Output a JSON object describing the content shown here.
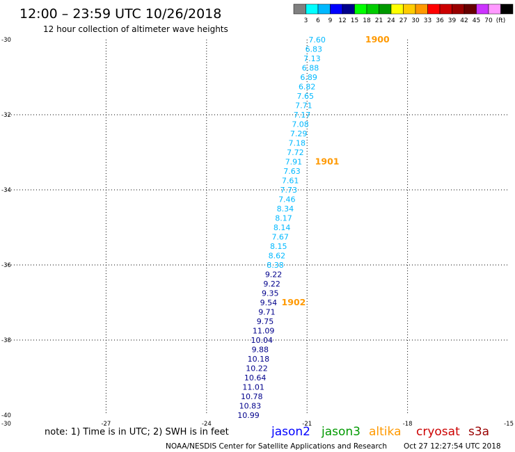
{
  "header": {
    "title": "12:00 – 23:59 UTC 10/26/2018",
    "subtitle": "12 hour collection of altimeter wave heights"
  },
  "colorbar": {
    "colors": [
      "#808080",
      "#00ffff",
      "#00b8ff",
      "#0000ff",
      "#00008b",
      "#00ff00",
      "#00cc00",
      "#009900",
      "#ffff00",
      "#ffcc00",
      "#ff9900",
      "#ff0000",
      "#cc0000",
      "#990000",
      "#660000",
      "#cc33ff",
      "#ff99ff",
      "#000000"
    ],
    "labels": [
      "3",
      "6",
      "9",
      "12",
      "15",
      "18",
      "21",
      "24",
      "27",
      "30",
      "33",
      "36",
      "39",
      "42",
      "45",
      "70",
      "(ft)"
    ]
  },
  "footer": {
    "note": "note: 1) Time is in UTC; 2) SWH is in feet",
    "credit": "NOAA/NESDIS Center for Satellite Applications and Research",
    "timestamp": "Oct 27 12:27:54 UTC 2018"
  },
  "legend": [
    {
      "name": "jason2",
      "color": "#0000ff"
    },
    {
      "name": "jason3",
      "color": "#009900"
    },
    {
      "name": "altika",
      "color": "#ff9900"
    },
    {
      "name": "cryosat",
      "color": "#cc0000"
    },
    {
      "name": "s3a",
      "color": "#990000"
    }
  ],
  "chart_data": {
    "type": "scatter",
    "xlim": [
      -30,
      -15
    ],
    "ylim": [
      -40,
      -30
    ],
    "xticks": [
      "-30",
      "-27",
      "-24",
      "-21",
      "-18",
      "-15"
    ],
    "yticks": [
      "-30",
      "-32",
      "-34",
      "-36",
      "-38",
      "-40"
    ],
    "grid": true,
    "series": [
      {
        "color": "#00b8ff",
        "points": [
          {
            "x": -20.7,
            "y": -30.0,
            "label": "7.60"
          },
          {
            "x": -20.8,
            "y": -30.25,
            "label": "6.83"
          },
          {
            "x": -20.85,
            "y": -30.5,
            "label": "7.13"
          },
          {
            "x": -20.9,
            "y": -30.75,
            "label": "6.88"
          },
          {
            "x": -20.95,
            "y": -31.0,
            "label": "6.89"
          },
          {
            "x": -21.0,
            "y": -31.25,
            "label": "6.82"
          },
          {
            "x": -21.05,
            "y": -31.5,
            "label": "7.65"
          },
          {
            "x": -21.1,
            "y": -31.75,
            "label": "7.71"
          },
          {
            "x": -21.15,
            "y": -32.0,
            "label": "7.17"
          },
          {
            "x": -21.2,
            "y": -32.25,
            "label": "7.08"
          },
          {
            "x": -21.25,
            "y": -32.5,
            "label": "7.29"
          },
          {
            "x": -21.3,
            "y": -32.75,
            "label": "7.18"
          },
          {
            "x": -21.35,
            "y": -33.0,
            "label": "7.72"
          },
          {
            "x": -21.4,
            "y": -33.25,
            "label": "7.91"
          },
          {
            "x": -21.45,
            "y": -33.5,
            "label": "7.63"
          },
          {
            "x": -21.5,
            "y": -33.75,
            "label": "7.61"
          },
          {
            "x": -21.55,
            "y": -34.0,
            "label": "7.73"
          },
          {
            "x": -21.6,
            "y": -34.25,
            "label": "7.46"
          },
          {
            "x": -21.65,
            "y": -34.5,
            "label": "8.34"
          },
          {
            "x": -21.7,
            "y": -34.75,
            "label": "8.17"
          },
          {
            "x": -21.75,
            "y": -35.0,
            "label": "8.14"
          },
          {
            "x": -21.8,
            "y": -35.25,
            "label": "7.67"
          },
          {
            "x": -21.85,
            "y": -35.5,
            "label": "8.15"
          },
          {
            "x": -21.9,
            "y": -35.75,
            "label": "8.62"
          },
          {
            "x": -21.95,
            "y": -36.0,
            "label": "8.38"
          }
        ]
      },
      {
        "color": "#00008b",
        "points": [
          {
            "x": -22.0,
            "y": -36.25,
            "label": "9.22"
          },
          {
            "x": -22.05,
            "y": -36.5,
            "label": "9.22"
          },
          {
            "x": -22.1,
            "y": -36.75,
            "label": "9.35"
          },
          {
            "x": -22.15,
            "y": -37.0,
            "label": "9.54"
          },
          {
            "x": -22.2,
            "y": -37.25,
            "label": "9.71"
          },
          {
            "x": -22.25,
            "y": -37.5,
            "label": "9.75"
          },
          {
            "x": -22.3,
            "y": -37.75,
            "label": "11.09"
          },
          {
            "x": -22.35,
            "y": -38.0,
            "label": "10.04"
          },
          {
            "x": -22.4,
            "y": -38.25,
            "label": "9.88"
          },
          {
            "x": -22.45,
            "y": -38.5,
            "label": "10.18"
          },
          {
            "x": -22.5,
            "y": -38.75,
            "label": "10.22"
          },
          {
            "x": -22.55,
            "y": -39.0,
            "label": "10.64"
          },
          {
            "x": -22.6,
            "y": -39.25,
            "label": "11.01"
          },
          {
            "x": -22.65,
            "y": -39.5,
            "label": "10.78"
          },
          {
            "x": -22.7,
            "y": -39.75,
            "label": "10.83"
          },
          {
            "x": -22.75,
            "y": -40.0,
            "label": "10.99"
          }
        ]
      }
    ],
    "annotations": [
      {
        "text": "1900",
        "x": -18.9,
        "y": -30.0,
        "color": "#ff9900"
      },
      {
        "text": "1901",
        "x": -20.4,
        "y": -33.25,
        "color": "#ff9900"
      },
      {
        "text": "1902",
        "x": -21.4,
        "y": -37.0,
        "color": "#ff9900"
      }
    ]
  }
}
